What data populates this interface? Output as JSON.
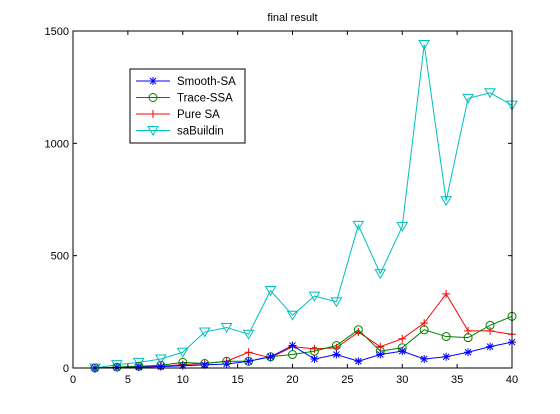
{
  "chart_data": {
    "type": "line",
    "title": "final result",
    "xlabel": "",
    "ylabel": "",
    "xlim": [
      0,
      40
    ],
    "ylim": [
      0,
      1500
    ],
    "xticks": [
      0,
      5,
      10,
      15,
      20,
      25,
      30,
      35,
      40
    ],
    "yticks": [
      0,
      500,
      1000,
      1500
    ],
    "grid": false,
    "legend_position": "top-left",
    "x": [
      2,
      4,
      6,
      8,
      10,
      12,
      14,
      16,
      18,
      20,
      22,
      24,
      26,
      28,
      30,
      32,
      34,
      36,
      38,
      40
    ],
    "series": [
      {
        "name": "Smooth-SA",
        "color": "#0000ff",
        "marker": "asterisk",
        "values": [
          0,
          2,
          4,
          6,
          10,
          14,
          18,
          30,
          50,
          100,
          40,
          60,
          30,
          60,
          75,
          40,
          50,
          70,
          95,
          115
        ]
      },
      {
        "name": "Trace-SSA",
        "color": "#008000",
        "marker": "circle",
        "values": [
          0,
          4,
          8,
          12,
          25,
          20,
          30,
          30,
          50,
          60,
          75,
          100,
          170,
          75,
          90,
          170,
          140,
          135,
          190,
          230
        ]
      },
      {
        "name": "Pure SA",
        "color": "#ff0000",
        "marker": "plus",
        "values": [
          0,
          3,
          5,
          8,
          15,
          20,
          30,
          70,
          45,
          95,
          85,
          90,
          160,
          95,
          130,
          200,
          330,
          165,
          165,
          150
        ]
      },
      {
        "name": "saBuildin",
        "color": "#00bfbf",
        "marker": "triangle-down",
        "values": [
          0,
          15,
          25,
          40,
          70,
          160,
          180,
          150,
          345,
          235,
          320,
          295,
          635,
          420,
          630,
          1440,
          745,
          1200,
          1225,
          1170
        ]
      }
    ]
  }
}
